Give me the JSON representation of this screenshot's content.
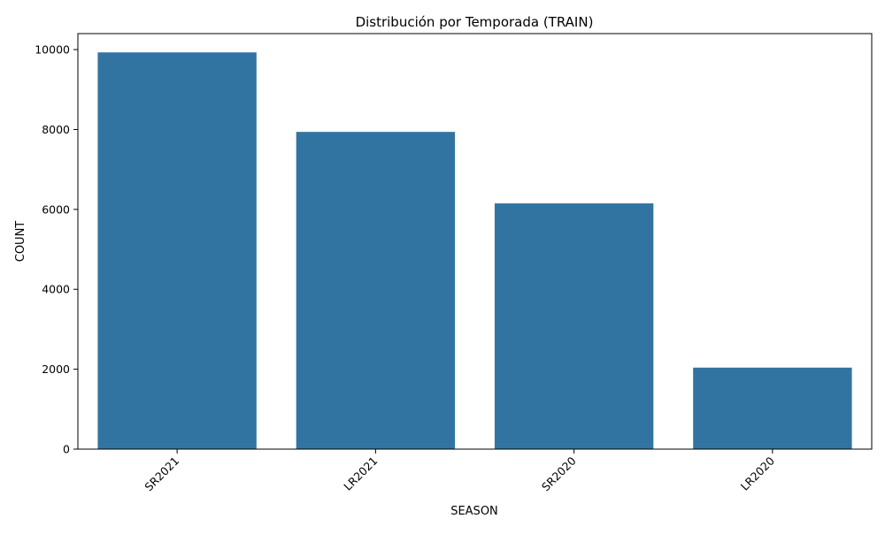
{
  "chart_data": {
    "type": "bar",
    "title": "Distribución por Temporada (TRAIN)",
    "xlabel": "SEASON",
    "ylabel": "COUNT",
    "categories": [
      "SR2021",
      "LR2021",
      "SR2020",
      "LR2020"
    ],
    "values": [
      9930,
      7940,
      6150,
      2040
    ],
    "ylim": [
      0,
      10400
    ],
    "yticks": [
      0,
      2000,
      4000,
      6000,
      8000,
      10000
    ],
    "bar_color": "#3274a1",
    "grid": false,
    "legend": "none"
  }
}
